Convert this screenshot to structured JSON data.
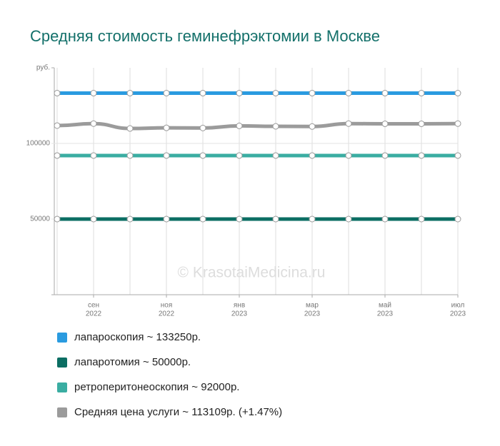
{
  "chart_data": {
    "type": "line",
    "title": "Средняя стоимость геминефрэктомии в Москве",
    "watermark": "© KrasotaiMedicina.ru",
    "y_unit": "руб.",
    "categories": [
      null,
      "сен",
      null,
      "ноя",
      null,
      "янв",
      null,
      "мар",
      null,
      "май",
      null,
      "июл"
    ],
    "years": [
      null,
      "2022",
      null,
      "2022",
      null,
      "2023",
      null,
      "2023",
      null,
      "2023",
      null,
      "2023"
    ],
    "ylim": [
      0,
      150000
    ],
    "yticks": [
      50000,
      100000
    ],
    "grid": true,
    "series": [
      {
        "name": "лапароскопия ~ 133250р.",
        "color": "#2a9be0",
        "values": [
          133250,
          133250,
          133250,
          133250,
          133250,
          133250,
          133250,
          133250,
          133250,
          133250,
          133250,
          133250
        ]
      },
      {
        "name": "лапаротомия ~ 50000р.",
        "color": "#0b6e63",
        "values": [
          50000,
          50000,
          50000,
          50000,
          50000,
          50000,
          50000,
          50000,
          50000,
          50000,
          50000,
          50000
        ]
      },
      {
        "name": "ретроперитонеоскопия ~ 92000р.",
        "color": "#3aada2",
        "values": [
          92000,
          92000,
          92000,
          92000,
          92000,
          92000,
          92000,
          92000,
          92000,
          92000,
          92000,
          92000
        ]
      },
      {
        "name": "Средняя цена услуги ~ 113109р. (+1.47%)",
        "color": "#9b9b9b",
        "values": [
          111800,
          113100,
          109900,
          110300,
          110200,
          111600,
          111300,
          111200,
          113100,
          113000,
          113000,
          113100
        ]
      }
    ]
  }
}
